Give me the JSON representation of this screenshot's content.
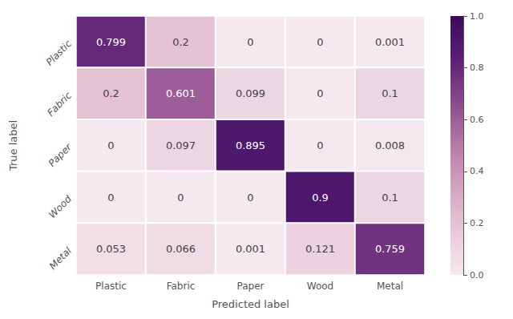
{
  "chart_data": {
    "type": "heatmap",
    "categories": [
      "Plastic",
      "Fabric",
      "Paper",
      "Wood",
      "Metal"
    ],
    "xlabel": "Predicted label",
    "ylabel": "True label",
    "cells": [
      [
        0.799,
        0.2,
        0.0,
        0.0,
        0.001
      ],
      [
        0.2,
        0.601,
        0.099,
        0.0,
        0.1
      ],
      [
        0.0,
        0.097,
        0.895,
        0.0,
        0.008
      ],
      [
        0.0,
        0.0,
        0.0,
        0.9,
        0.1
      ],
      [
        0.053,
        0.066,
        0.001,
        0.121,
        0.759
      ]
    ],
    "data_labels": true,
    "colormap": [
      "#f5e8ee",
      "#e8c9d8",
      "#d4a5c0",
      "#b87aaa",
      "#8b4a8c",
      "#5c2075",
      "#3b0a5c"
    ],
    "color_range": [
      0.0,
      1.0
    ],
    "color_ticks": [
      {
        "value": 0,
        "label": "0.0"
      },
      0.2,
      0.4,
      0.6,
      0.8,
      {
        "value": 1,
        "label": "1.0"
      }
    ]
  }
}
